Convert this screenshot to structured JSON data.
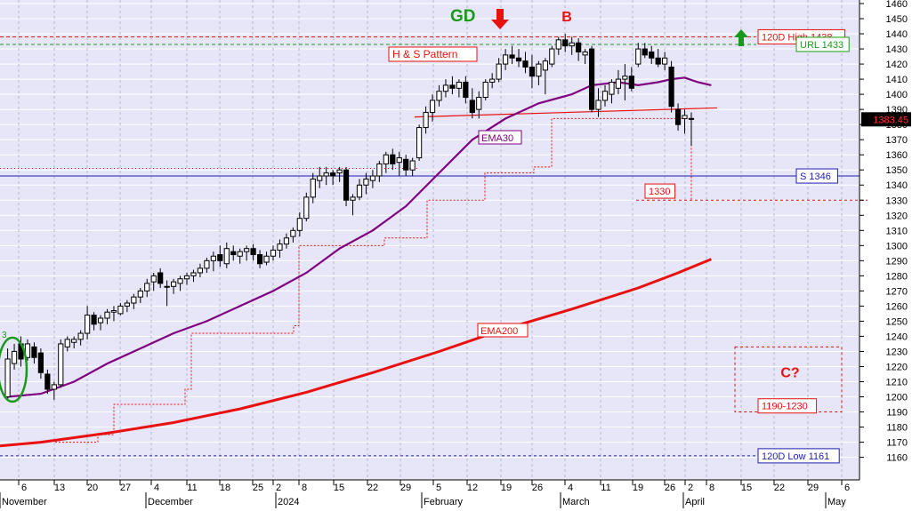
{
  "chart_data": {
    "type": "candlestick",
    "title": "",
    "xlabel": "",
    "ylabel": "",
    "ylim": [
      1155,
      1460
    ],
    "y_ticks": [
      1160,
      1170,
      1180,
      1190,
      1200,
      1210,
      1220,
      1230,
      1240,
      1250,
      1260,
      1270,
      1280,
      1290,
      1300,
      1310,
      1320,
      1330,
      1340,
      1350,
      1360,
      1370,
      1380,
      1390,
      1400,
      1410,
      1420,
      1430,
      1440,
      1450,
      1460
    ],
    "x_day_ticks": [
      "6",
      "13",
      "20",
      "27",
      "4",
      "11",
      "18",
      "25",
      "2",
      "8",
      "15",
      "22",
      "29",
      "5",
      "12",
      "19",
      "26",
      "4",
      "11",
      "19",
      "26",
      "2",
      "8",
      "15",
      "22",
      "29",
      "6"
    ],
    "x_month_labels": [
      "November",
      "December",
      "2024",
      "February",
      "March",
      "April",
      "May"
    ],
    "grid": true,
    "last_price": "1383.45",
    "candles": [
      {
        "o": 1200,
        "h": 1232,
        "l": 1198,
        "c": 1225
      },
      {
        "o": 1222,
        "h": 1235,
        "l": 1218,
        "c": 1230
      },
      {
        "o": 1235,
        "h": 1240,
        "l": 1220,
        "c": 1225
      },
      {
        "o": 1226,
        "h": 1238,
        "l": 1224,
        "c": 1235
      },
      {
        "o": 1233,
        "h": 1236,
        "l": 1222,
        "c": 1226
      },
      {
        "o": 1229,
        "h": 1232,
        "l": 1212,
        "c": 1216
      },
      {
        "o": 1215,
        "h": 1218,
        "l": 1202,
        "c": 1205
      },
      {
        "o": 1205,
        "h": 1210,
        "l": 1198,
        "c": 1208
      },
      {
        "o": 1208,
        "h": 1238,
        "l": 1206,
        "c": 1235
      },
      {
        "o": 1233,
        "h": 1240,
        "l": 1230,
        "c": 1238
      },
      {
        "o": 1236,
        "h": 1240,
        "l": 1232,
        "c": 1238
      },
      {
        "o": 1238,
        "h": 1244,
        "l": 1234,
        "c": 1242
      },
      {
        "o": 1242,
        "h": 1260,
        "l": 1238,
        "c": 1254
      },
      {
        "o": 1254,
        "h": 1256,
        "l": 1244,
        "c": 1248
      },
      {
        "o": 1249,
        "h": 1254,
        "l": 1244,
        "c": 1252
      },
      {
        "o": 1252,
        "h": 1258,
        "l": 1248,
        "c": 1256
      },
      {
        "o": 1256,
        "h": 1260,
        "l": 1250,
        "c": 1257
      },
      {
        "o": 1255,
        "h": 1262,
        "l": 1254,
        "c": 1260
      },
      {
        "o": 1260,
        "h": 1264,
        "l": 1256,
        "c": 1262
      },
      {
        "o": 1262,
        "h": 1268,
        "l": 1258,
        "c": 1266
      },
      {
        "o": 1266,
        "h": 1272,
        "l": 1262,
        "c": 1270
      },
      {
        "o": 1270,
        "h": 1278,
        "l": 1266,
        "c": 1275
      },
      {
        "o": 1276,
        "h": 1282,
        "l": 1270,
        "c": 1280
      },
      {
        "o": 1282,
        "h": 1285,
        "l": 1272,
        "c": 1275
      },
      {
        "o": 1273,
        "h": 1277,
        "l": 1260,
        "c": 1273
      },
      {
        "o": 1273,
        "h": 1278,
        "l": 1268,
        "c": 1276
      },
      {
        "o": 1275,
        "h": 1280,
        "l": 1270,
        "c": 1278
      },
      {
        "o": 1278,
        "h": 1282,
        "l": 1274,
        "c": 1280
      },
      {
        "o": 1280,
        "h": 1284,
        "l": 1276,
        "c": 1282
      },
      {
        "o": 1282,
        "h": 1288,
        "l": 1279,
        "c": 1285
      },
      {
        "o": 1285,
        "h": 1292,
        "l": 1282,
        "c": 1290
      },
      {
        "o": 1290,
        "h": 1296,
        "l": 1283,
        "c": 1293
      },
      {
        "o": 1294,
        "h": 1300,
        "l": 1286,
        "c": 1290
      },
      {
        "o": 1288,
        "h": 1302,
        "l": 1285,
        "c": 1298
      },
      {
        "o": 1296,
        "h": 1300,
        "l": 1290,
        "c": 1294
      },
      {
        "o": 1293,
        "h": 1298,
        "l": 1288,
        "c": 1296
      },
      {
        "o": 1296,
        "h": 1300,
        "l": 1290,
        "c": 1298
      },
      {
        "o": 1298,
        "h": 1301,
        "l": 1290,
        "c": 1294
      },
      {
        "o": 1294,
        "h": 1297,
        "l": 1285,
        "c": 1288
      },
      {
        "o": 1289,
        "h": 1296,
        "l": 1287,
        "c": 1293
      },
      {
        "o": 1293,
        "h": 1300,
        "l": 1290,
        "c": 1297
      },
      {
        "o": 1297,
        "h": 1304,
        "l": 1292,
        "c": 1301
      },
      {
        "o": 1301,
        "h": 1308,
        "l": 1298,
        "c": 1305
      },
      {
        "o": 1306,
        "h": 1312,
        "l": 1302,
        "c": 1310
      },
      {
        "o": 1310,
        "h": 1322,
        "l": 1306,
        "c": 1318
      },
      {
        "o": 1318,
        "h": 1335,
        "l": 1316,
        "c": 1332
      },
      {
        "o": 1332,
        "h": 1348,
        "l": 1328,
        "c": 1344
      },
      {
        "o": 1343,
        "h": 1352,
        "l": 1338,
        "c": 1346
      },
      {
        "o": 1346,
        "h": 1352,
        "l": 1340,
        "c": 1348
      },
      {
        "o": 1348,
        "h": 1350,
        "l": 1340,
        "c": 1346
      },
      {
        "o": 1348,
        "h": 1352,
        "l": 1342,
        "c": 1350
      },
      {
        "o": 1350,
        "h": 1352,
        "l": 1326,
        "c": 1330
      },
      {
        "o": 1330,
        "h": 1334,
        "l": 1320,
        "c": 1332
      },
      {
        "o": 1332,
        "h": 1344,
        "l": 1330,
        "c": 1340
      },
      {
        "o": 1340,
        "h": 1348,
        "l": 1334,
        "c": 1344
      },
      {
        "o": 1343,
        "h": 1350,
        "l": 1338,
        "c": 1346
      },
      {
        "o": 1346,
        "h": 1356,
        "l": 1342,
        "c": 1354
      },
      {
        "o": 1354,
        "h": 1362,
        "l": 1348,
        "c": 1360
      },
      {
        "o": 1360,
        "h": 1364,
        "l": 1350,
        "c": 1354
      },
      {
        "o": 1355,
        "h": 1362,
        "l": 1346,
        "c": 1358
      },
      {
        "o": 1357,
        "h": 1360,
        "l": 1346,
        "c": 1350
      },
      {
        "o": 1350,
        "h": 1358,
        "l": 1346,
        "c": 1356
      },
      {
        "o": 1358,
        "h": 1380,
        "l": 1356,
        "c": 1378
      },
      {
        "o": 1378,
        "h": 1392,
        "l": 1374,
        "c": 1388
      },
      {
        "o": 1388,
        "h": 1400,
        "l": 1382,
        "c": 1396
      },
      {
        "o": 1396,
        "h": 1406,
        "l": 1392,
        "c": 1402
      },
      {
        "o": 1402,
        "h": 1410,
        "l": 1398,
        "c": 1406
      },
      {
        "o": 1406,
        "h": 1412,
        "l": 1400,
        "c": 1404
      },
      {
        "o": 1404,
        "h": 1410,
        "l": 1398,
        "c": 1408
      },
      {
        "o": 1408,
        "h": 1412,
        "l": 1394,
        "c": 1398
      },
      {
        "o": 1396,
        "h": 1404,
        "l": 1384,
        "c": 1388
      },
      {
        "o": 1390,
        "h": 1402,
        "l": 1384,
        "c": 1398
      },
      {
        "o": 1398,
        "h": 1410,
        "l": 1396,
        "c": 1408
      },
      {
        "o": 1408,
        "h": 1414,
        "l": 1404,
        "c": 1410
      },
      {
        "o": 1410,
        "h": 1424,
        "l": 1408,
        "c": 1420
      },
      {
        "o": 1420,
        "h": 1430,
        "l": 1416,
        "c": 1426
      },
      {
        "o": 1426,
        "h": 1432,
        "l": 1420,
        "c": 1424
      },
      {
        "o": 1424,
        "h": 1430,
        "l": 1418,
        "c": 1422
      },
      {
        "o": 1422,
        "h": 1428,
        "l": 1414,
        "c": 1418
      },
      {
        "o": 1418,
        "h": 1426,
        "l": 1404,
        "c": 1412
      },
      {
        "o": 1412,
        "h": 1422,
        "l": 1406,
        "c": 1420
      },
      {
        "o": 1416,
        "h": 1424,
        "l": 1400,
        "c": 1422
      },
      {
        "o": 1420,
        "h": 1432,
        "l": 1418,
        "c": 1430
      },
      {
        "o": 1430,
        "h": 1438,
        "l": 1426,
        "c": 1436
      },
      {
        "o": 1436,
        "h": 1440,
        "l": 1428,
        "c": 1432
      },
      {
        "o": 1432,
        "h": 1438,
        "l": 1426,
        "c": 1434
      },
      {
        "o": 1434,
        "h": 1437,
        "l": 1422,
        "c": 1428
      },
      {
        "o": 1426,
        "h": 1430,
        "l": 1420,
        "c": 1428
      },
      {
        "o": 1430,
        "h": 1432,
        "l": 1388,
        "c": 1390
      },
      {
        "o": 1390,
        "h": 1404,
        "l": 1385,
        "c": 1396
      },
      {
        "o": 1396,
        "h": 1406,
        "l": 1392,
        "c": 1402
      },
      {
        "o": 1400,
        "h": 1410,
        "l": 1394,
        "c": 1408
      },
      {
        "o": 1404,
        "h": 1416,
        "l": 1400,
        "c": 1410
      },
      {
        "o": 1410,
        "h": 1420,
        "l": 1396,
        "c": 1412
      },
      {
        "o": 1412,
        "h": 1418,
        "l": 1402,
        "c": 1404
      },
      {
        "o": 1420,
        "h": 1434,
        "l": 1418,
        "c": 1430
      },
      {
        "o": 1430,
        "h": 1434,
        "l": 1424,
        "c": 1426
      },
      {
        "o": 1428,
        "h": 1432,
        "l": 1420,
        "c": 1424
      },
      {
        "o": 1424,
        "h": 1430,
        "l": 1418,
        "c": 1420
      },
      {
        "o": 1420,
        "h": 1428,
        "l": 1416,
        "c": 1424
      },
      {
        "o": 1418,
        "h": 1422,
        "l": 1388,
        "c": 1392
      },
      {
        "o": 1390,
        "h": 1394,
        "l": 1376,
        "c": 1380
      },
      {
        "o": 1384,
        "h": 1390,
        "l": 1374,
        "c": 1386
      },
      {
        "o": 1384,
        "h": 1388,
        "l": 1366,
        "c": 1384
      }
    ],
    "series": [
      {
        "name": "EMA30",
        "color": "#800080",
        "points": [
          [
            0,
            1200
          ],
          [
            5,
            1202
          ],
          [
            10,
            1210
          ],
          [
            15,
            1222
          ],
          [
            20,
            1232
          ],
          [
            25,
            1242
          ],
          [
            30,
            1250
          ],
          [
            35,
            1260
          ],
          [
            40,
            1270
          ],
          [
            45,
            1282
          ],
          [
            50,
            1298
          ],
          [
            55,
            1310
          ],
          [
            60,
            1326
          ],
          [
            65,
            1348
          ],
          [
            70,
            1370
          ],
          [
            75,
            1384
          ],
          [
            80,
            1394
          ],
          [
            85,
            1400
          ],
          [
            88,
            1406
          ],
          [
            92,
            1408
          ],
          [
            95,
            1406
          ],
          [
            98,
            1408
          ],
          [
            100,
            1410
          ],
          [
            102,
            1411
          ],
          [
            104,
            1408
          ],
          [
            106,
            1406
          ]
        ]
      },
      {
        "name": "EMA200",
        "color": "#e8110f",
        "points": [
          [
            -5,
            1166
          ],
          [
            5,
            1170
          ],
          [
            15,
            1176
          ],
          [
            25,
            1183
          ],
          [
            35,
            1192
          ],
          [
            45,
            1203
          ],
          [
            55,
            1216
          ],
          [
            65,
            1230
          ],
          [
            75,
            1245
          ],
          [
            85,
            1258
          ],
          [
            95,
            1272
          ],
          [
            101,
            1282
          ],
          [
            106,
            1291
          ]
        ]
      }
    ],
    "horizontal_lines": [
      {
        "value": 1438,
        "label": "120D High 1438",
        "color": "#e8110f",
        "style": "dashed"
      },
      {
        "value": 1433,
        "label": "URL 1433",
        "color": "#1a9a1a",
        "style": "dashed"
      },
      {
        "value": 1346,
        "label": "S 1346",
        "color": "#1f1fb0",
        "style": "solid"
      },
      {
        "value": 1161,
        "label": "120D Low 1161",
        "color": "#1f1fb0",
        "style": "dashed"
      }
    ],
    "neckline": {
      "points": [
        [
          63,
          1385
        ],
        [
          108,
          1391
        ]
      ]
    },
    "target_1330": {
      "value": 1330,
      "label": "1330"
    },
    "projection": {
      "label": "C?",
      "range_label": "1190-1230",
      "low": 1190,
      "high": 1230
    },
    "annotations": [
      {
        "text": "GD",
        "color": "#1a9a1a"
      },
      {
        "text": "B",
        "color": "#e8110f"
      },
      {
        "text": "H & S Pattern",
        "color": "#e8110f"
      },
      {
        "text": "EMA30",
        "color": "#800080"
      },
      {
        "text": "EMA200",
        "color": "#e8110f"
      },
      {
        "text": "3",
        "color": "#1a9a1a"
      }
    ]
  }
}
